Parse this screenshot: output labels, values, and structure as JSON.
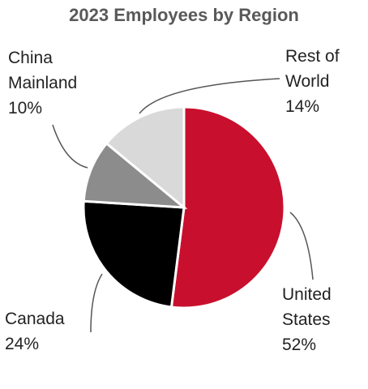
{
  "chart_data": {
    "type": "pie",
    "title": "2023 Employees by Region",
    "categories": [
      "United States",
      "Canada",
      "China Mainland",
      "Rest of World"
    ],
    "values": [
      52,
      24,
      10,
      14
    ],
    "value_labels": [
      "52%",
      "24%",
      "10%",
      "14%"
    ],
    "colors": [
      "#c8102e",
      "#000000",
      "#8c8c8c",
      "#d9d9d9"
    ]
  }
}
